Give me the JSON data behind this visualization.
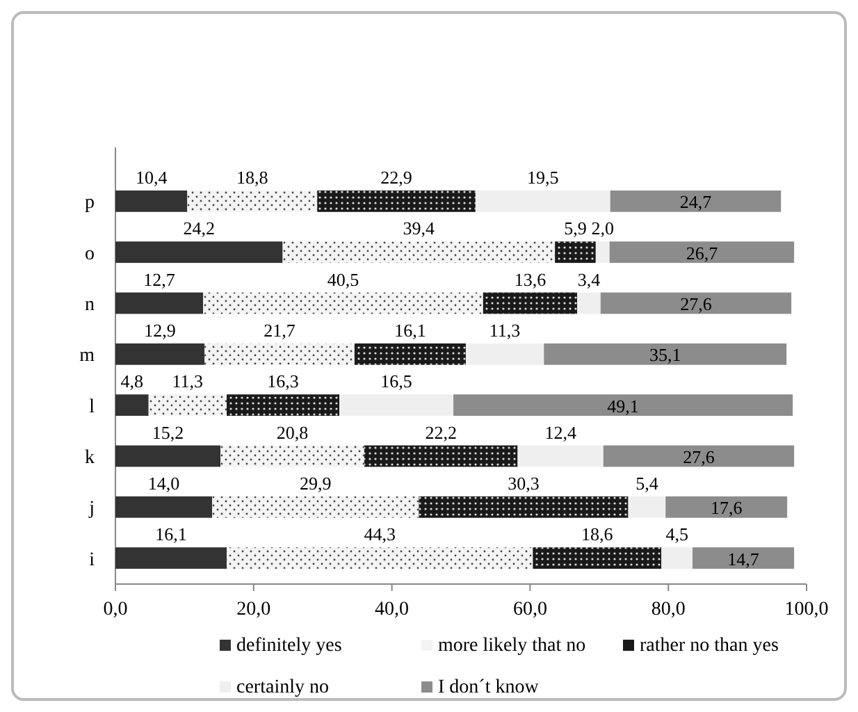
{
  "chart_data": {
    "type": "bar",
    "orientation": "horizontal",
    "stacked": true,
    "categories": [
      "p",
      "o",
      "n",
      "m",
      "l",
      "k",
      "j",
      "i"
    ],
    "xlim": [
      0,
      100
    ],
    "xticks": [
      {
        "value": 0,
        "label": "0,0"
      },
      {
        "value": 20,
        "label": "20,0"
      },
      {
        "value": 40,
        "label": "40,0"
      },
      {
        "value": 60,
        "label": "60,0"
      },
      {
        "value": 80,
        "label": "80,0"
      },
      {
        "value": 100,
        "label": "100,0"
      }
    ],
    "grid": false,
    "legend": "bottom",
    "series": [
      {
        "name": "definitely yes",
        "color": "#333333",
        "values": [
          10.4,
          24.2,
          12.7,
          12.9,
          4.8,
          15.2,
          14.0,
          16.1
        ],
        "value_labels": [
          "10,4",
          "24,2",
          "12,7",
          "12,9",
          "4,8",
          "15,2",
          "14,0",
          "16,1"
        ]
      },
      {
        "name": "more likely that no",
        "color": "#f4f4f4",
        "values": [
          18.8,
          39.4,
          40.5,
          21.7,
          11.3,
          20.8,
          29.9,
          44.3
        ],
        "value_labels": [
          "18,8",
          "39,4",
          "40,5",
          "21,7",
          "11,3",
          "20,8",
          "29,9",
          "44,3"
        ]
      },
      {
        "name": "rather no than yes",
        "color": "#1a1a1a",
        "values": [
          22.9,
          5.9,
          13.6,
          16.1,
          16.3,
          22.2,
          30.3,
          18.6
        ],
        "value_labels": [
          "22,9",
          "5,9",
          "13,6",
          "16,1",
          "16,3",
          "22,2",
          "30,3",
          "18,6"
        ]
      },
      {
        "name": "certainly no",
        "color": "#efefef",
        "values": [
          19.5,
          2.0,
          3.4,
          11.3,
          16.5,
          12.4,
          5.4,
          4.5
        ],
        "value_labels": [
          "19,5",
          "2,0",
          "3,4",
          "11,3",
          "16,5",
          "12,4",
          "5,4",
          "4,5"
        ]
      },
      {
        "name": "I don´t know",
        "color": "#8c8c8c",
        "values": [
          24.7,
          26.7,
          27.6,
          35.1,
          49.1,
          27.6,
          17.6,
          14.7
        ],
        "value_labels": [
          "24,7",
          "26,7",
          "27,6",
          "35,1",
          "49,1",
          "27,6",
          "17,6",
          "14,7"
        ]
      }
    ]
  }
}
